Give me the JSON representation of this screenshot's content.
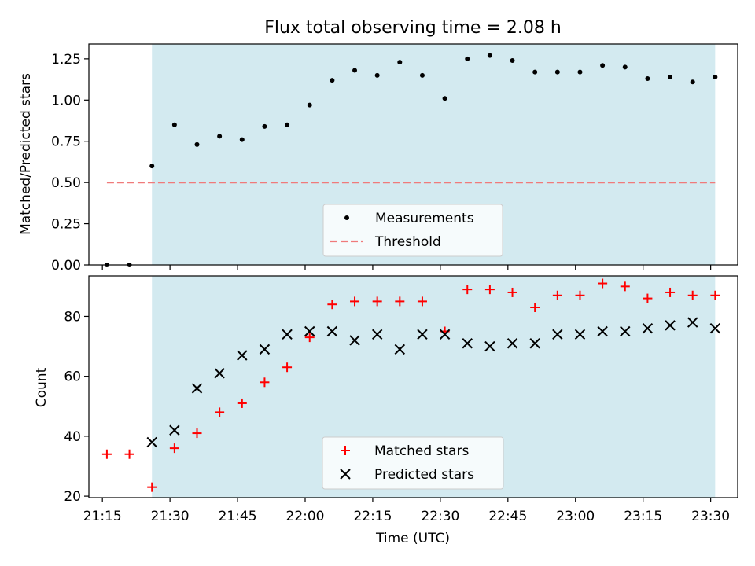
{
  "chart_data": [
    {
      "type": "scatter",
      "title": "Flux total observing time = 2.08 h",
      "xlabel": "",
      "ylabel": "Matched/Predicted stars",
      "ylim": [
        0,
        1.34
      ],
      "yticks": [
        0.0,
        0.25,
        0.5,
        0.75,
        1.0,
        1.25
      ],
      "ytick_labels": [
        "0.00",
        "0.25",
        "0.50",
        "0.75",
        "1.00",
        "1.25"
      ],
      "xlim": [
        "21:12",
        "23:36"
      ],
      "observing_window": [
        "21:26",
        "23:31"
      ],
      "shade_color": "#d3eaf0",
      "legend": {
        "placement": "lower center"
      },
      "series": [
        {
          "name": "Measurements",
          "marker": "dot",
          "color": "#000000",
          "x": [
            "21:16",
            "21:21",
            "21:26",
            "21:31",
            "21:36",
            "21:41",
            "21:46",
            "21:51",
            "21:56",
            "22:01",
            "22:06",
            "22:11",
            "22:16",
            "22:21",
            "22:26",
            "22:31",
            "22:36",
            "22:41",
            "22:46",
            "22:51",
            "22:56",
            "23:01",
            "23:06",
            "23:11",
            "23:16",
            "23:21",
            "23:26",
            "23:31"
          ],
          "y": [
            0.0,
            0.0,
            0.6,
            0.85,
            0.73,
            0.78,
            0.76,
            0.84,
            0.85,
            0.97,
            1.12,
            1.18,
            1.15,
            1.23,
            1.15,
            1.01,
            1.25,
            1.27,
            1.24,
            1.17,
            1.17,
            1.17,
            1.21,
            1.2,
            1.13,
            1.14,
            1.11,
            1.14
          ]
        },
        {
          "name": "Threshold",
          "marker": "dashed-line",
          "color": "#f07a7a",
          "x": [
            "21:16",
            "23:31"
          ],
          "y": [
            0.5,
            0.5
          ]
        }
      ]
    },
    {
      "type": "scatter",
      "title": "",
      "xlabel": "Time (UTC)",
      "ylabel": "Count",
      "ylim": [
        19.5,
        93.5
      ],
      "yticks": [
        20,
        40,
        60,
        80
      ],
      "ytick_labels": [
        "20",
        "40",
        "60",
        "80"
      ],
      "xlim": [
        "21:12",
        "23:36"
      ],
      "xticks": [
        "21:15",
        "21:30",
        "21:45",
        "22:00",
        "22:15",
        "22:30",
        "22:45",
        "23:00",
        "23:15",
        "23:30"
      ],
      "observing_window": [
        "21:26",
        "23:31"
      ],
      "shade_color": "#d3eaf0",
      "legend": {
        "placement": "lower center"
      },
      "series": [
        {
          "name": "Matched stars",
          "marker": "plus",
          "color": "#ff0000",
          "x": [
            "21:16",
            "21:21",
            "21:26",
            "21:31",
            "21:36",
            "21:41",
            "21:46",
            "21:51",
            "21:56",
            "22:01",
            "22:06",
            "22:11",
            "22:16",
            "22:21",
            "22:26",
            "22:31",
            "22:36",
            "22:41",
            "22:46",
            "22:51",
            "22:56",
            "23:01",
            "23:06",
            "23:11",
            "23:16",
            "23:21",
            "23:26",
            "23:31"
          ],
          "y": [
            34,
            34,
            23,
            36,
            41,
            48,
            51,
            58,
            63,
            73,
            84,
            85,
            85,
            85,
            85,
            75,
            89,
            89,
            88,
            83,
            87,
            87,
            91,
            90,
            86,
            88,
            87,
            87
          ]
        },
        {
          "name": "Predicted stars",
          "marker": "x",
          "color": "#000000",
          "x": [
            "21:26",
            "21:31",
            "21:36",
            "21:41",
            "21:46",
            "21:51",
            "21:56",
            "22:01",
            "22:06",
            "22:11",
            "22:16",
            "22:21",
            "22:26",
            "22:31",
            "22:36",
            "22:41",
            "22:46",
            "22:51",
            "22:56",
            "23:01",
            "23:06",
            "23:11",
            "23:16",
            "23:21",
            "23:26",
            "23:31"
          ],
          "y": [
            38,
            42,
            56,
            61,
            67,
            69,
            74,
            75,
            75,
            72,
            74,
            69,
            74,
            74,
            71,
            70,
            71,
            71,
            74,
            74,
            75,
            75,
            76,
            77,
            78,
            76
          ]
        }
      ]
    }
  ]
}
